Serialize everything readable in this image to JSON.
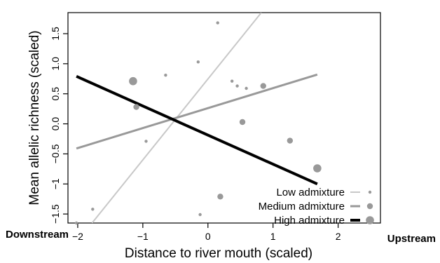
{
  "chart_data": {
    "type": "scatter",
    "title": "",
    "xlabel": "Distance to river mouth (scaled)",
    "ylabel": "Mean allelic richness (scaled)",
    "xlim": [
      -2.15,
      2.65
    ],
    "ylim": [
      -1.65,
      1.85
    ],
    "x_ticks": [
      -2,
      -1,
      0,
      1,
      2
    ],
    "x_tick_labels": [
      "−2",
      "−1",
      "0",
      "1",
      "2"
    ],
    "y_ticks": [
      -1.5,
      -1,
      -0.5,
      0,
      0.5,
      1,
      1.5
    ],
    "y_tick_labels": [
      "−1.5",
      "−1",
      "−0.5",
      "0.0",
      "0.5",
      "1.0",
      "1.5"
    ],
    "grid": false,
    "legend_position": "bottom-right",
    "x_extremes": {
      "left": "Downstream",
      "right": "Upstream"
    },
    "series": [
      {
        "name": "Low admixture",
        "color": "#c8c8c8",
        "line_width": 2,
        "marker_color": "#999999",
        "marker_size": "small",
        "line": [
          [
            -1.78,
            -1.65
          ],
          [
            0.82,
            1.85
          ]
        ],
        "points": [
          [
            -2.02,
            -1.65
          ],
          [
            -1.77,
            -1.42
          ],
          [
            -0.95,
            -0.29
          ],
          [
            -0.65,
            0.81
          ],
          [
            -0.15,
            1.03
          ],
          [
            0.15,
            1.68
          ],
          [
            -0.12,
            -1.51
          ],
          [
            0.37,
            0.71
          ],
          [
            0.45,
            0.63
          ],
          [
            0.59,
            0.59
          ]
        ]
      },
      {
        "name": "Medium admixture",
        "color": "#999999",
        "line_width": 3,
        "marker_color": "#999999",
        "marker_size": "medium",
        "line": [
          [
            -2.02,
            -0.41
          ],
          [
            1.68,
            0.82
          ]
        ],
        "points": [
          [
            -1.1,
            0.28
          ],
          [
            0.85,
            0.63
          ],
          [
            0.19,
            -1.21
          ],
          [
            0.53,
            0.03
          ],
          [
            1.26,
            -0.28
          ]
        ]
      },
      {
        "name": "High admixture",
        "color": "#000000",
        "line_width": 4,
        "marker_color": "#999999",
        "marker_size": "large",
        "line": [
          [
            -2.02,
            0.79
          ],
          [
            1.68,
            -1.0
          ]
        ],
        "points": [
          [
            -1.15,
            0.71
          ],
          [
            1.68,
            -0.74
          ]
        ]
      }
    ]
  }
}
